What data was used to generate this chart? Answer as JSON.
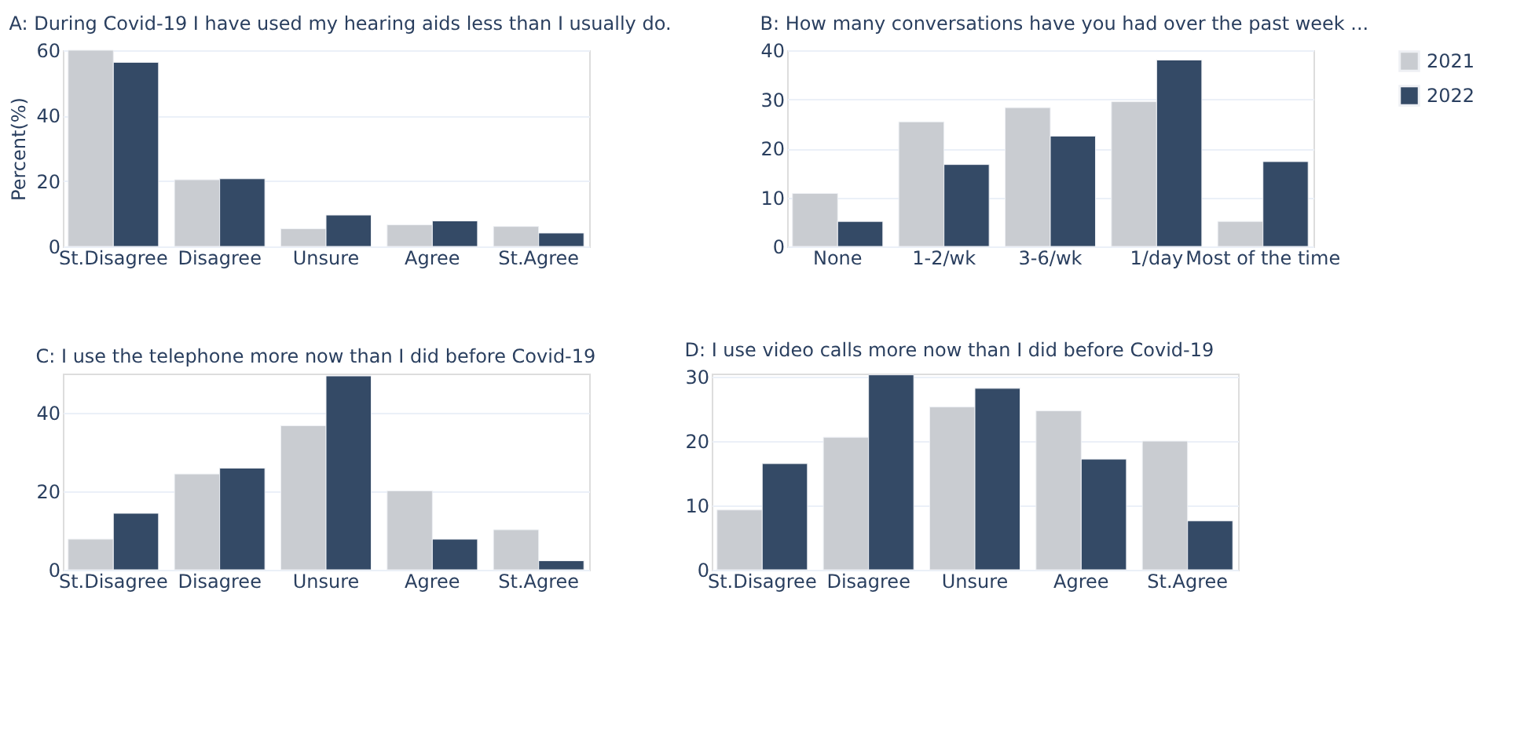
{
  "chart_data": [
    {
      "type": "bar",
      "title": "A: During Covid-19 I have used my hearing aids less than I usually do.",
      "ylabel": "Percent(%)",
      "categories": [
        "St.Disagree",
        "Disagree",
        "Unsure",
        "Agree",
        "St.Agree"
      ],
      "series": [
        {
          "name": "2021",
          "color": "#c9ccd1",
          "values": [
            60.0,
            20.4,
            5.4,
            6.6,
            6.1
          ]
        },
        {
          "name": "2022",
          "color": "#344a66",
          "values": [
            56.3,
            20.7,
            9.6,
            7.8,
            4.1
          ]
        }
      ],
      "ylim": [
        0,
        60
      ],
      "yticks": [
        0,
        20,
        40,
        60
      ],
      "grid": "y",
      "legend": "right"
    },
    {
      "type": "bar",
      "title": "B: How many conversations have you had over the past week ...",
      "categories": [
        "None",
        "1-2/wk",
        "3-6/wk",
        "1/day",
        "Most of the time"
      ],
      "series": [
        {
          "name": "2021",
          "color": "#c9ccd1",
          "values": [
            10.8,
            25.4,
            28.3,
            29.5,
            5.1
          ]
        },
        {
          "name": "2022",
          "color": "#344a66",
          "values": [
            5.1,
            16.7,
            22.5,
            38.0,
            17.3
          ]
        }
      ],
      "ylim": [
        0,
        40
      ],
      "yticks": [
        0,
        10,
        20,
        30,
        40
      ],
      "grid": "y"
    },
    {
      "type": "bar",
      "title": "C: I use the telephone more now than I did before Covid-19",
      "categories": [
        "St.Disagree",
        "Disagree",
        "Unsure",
        "Agree",
        "St.Agree"
      ],
      "series": [
        {
          "name": "2021",
          "color": "#c9ccd1",
          "values": [
            7.8,
            24.4,
            36.7,
            20.1,
            10.2
          ]
        },
        {
          "name": "2022",
          "color": "#344a66",
          "values": [
            14.4,
            25.9,
            49.4,
            7.8,
            2.3
          ]
        }
      ],
      "ylim": [
        0,
        50
      ],
      "yticks": [
        0,
        20,
        40
      ],
      "grid": "y"
    },
    {
      "type": "bar",
      "title": "D: I use video calls more now than I did before Covid-19",
      "categories": [
        "St.Disagree",
        "Disagree",
        "Unsure",
        "Agree",
        "St.Agree"
      ],
      "series": [
        {
          "name": "2021",
          "color": "#c9ccd1",
          "values": [
            9.3,
            20.6,
            25.3,
            24.7,
            20.0
          ]
        },
        {
          "name": "2022",
          "color": "#344a66",
          "values": [
            16.5,
            30.3,
            28.2,
            17.2,
            7.6
          ]
        }
      ],
      "ylim": [
        0,
        30.5
      ],
      "yticks": [
        0,
        10,
        20,
        30
      ],
      "grid": "y"
    }
  ]
}
